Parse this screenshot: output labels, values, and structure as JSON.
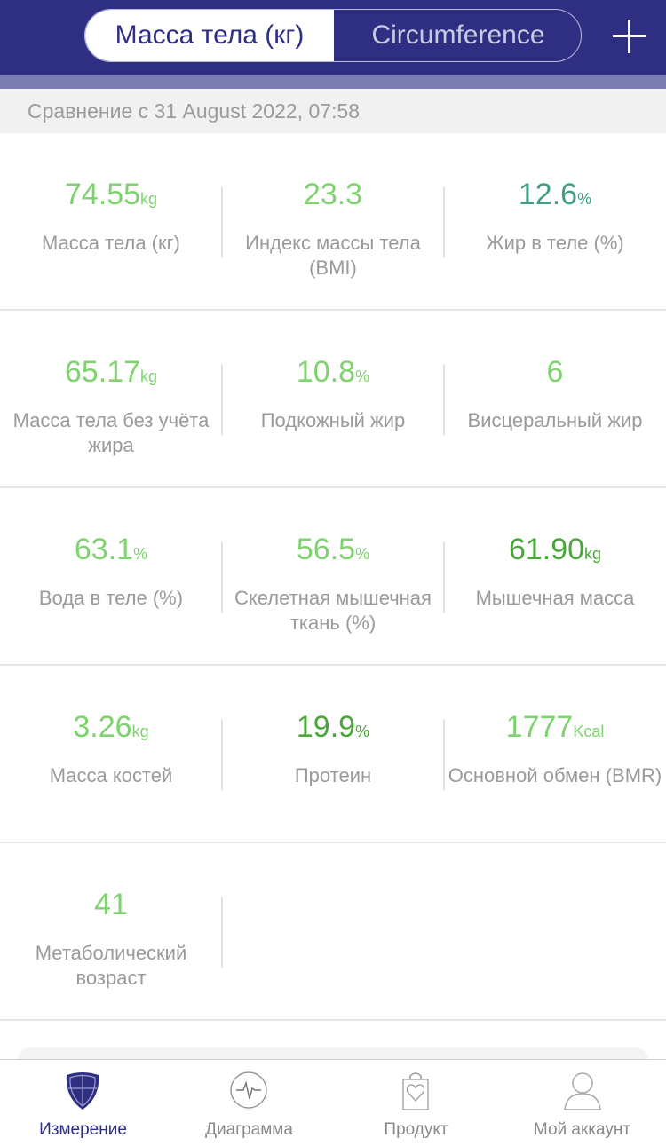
{
  "header": {
    "tabs": [
      {
        "label": "Масса тела (кг)",
        "active": true
      },
      {
        "label": "Circumference",
        "active": false
      }
    ],
    "add_icon": "plus-icon"
  },
  "compare": "Сравнение с 31 August 2022, 07:58",
  "colors": {
    "navy": "#2e2f82",
    "light_green": "#7ed36f",
    "teal": "#3f9e86",
    "dark_green": "#4aa83a",
    "label_gray": "#9a9a9a"
  },
  "rows": [
    [
      {
        "value": "74.55",
        "unit": "kg",
        "label": "Масса тела (кг)",
        "color": "#7ed36f"
      },
      {
        "value": "23.3",
        "unit": "",
        "label": "Индекс массы тела (BMI)",
        "color": "#7ed36f"
      },
      {
        "value": "12.6",
        "unit": "%",
        "label": "Жир в теле (%)",
        "color": "#3f9e86"
      }
    ],
    [
      {
        "value": "65.17",
        "unit": "kg",
        "label": "Масса тела без учёта жира",
        "color": "#7ed36f"
      },
      {
        "value": "10.8",
        "unit": "%",
        "label": "Подкожный жир",
        "color": "#7ed36f"
      },
      {
        "value": "6",
        "unit": "",
        "label": "Висцеральный жир",
        "color": "#7ed36f"
      }
    ],
    [
      {
        "value": "63.1",
        "unit": "%",
        "label": "Вода в теле (%)",
        "color": "#7ed36f"
      },
      {
        "value": "56.5",
        "unit": "%",
        "label": "Скелетная мышечная ткань (%)",
        "color": "#7ed36f"
      },
      {
        "value": "61.90",
        "unit": "kg",
        "label": "Мышечная масса",
        "color": "#4aa83a"
      }
    ],
    [
      {
        "value": "3.26",
        "unit": "kg",
        "label": "Масса костей",
        "color": "#7ed36f"
      },
      {
        "value": "19.9",
        "unit": "%",
        "label": "Протеин",
        "color": "#4aa83a"
      },
      {
        "value": "1777",
        "unit": "Kcal",
        "label": "Основной обмен (BMR)",
        "color": "#7ed36f"
      }
    ],
    [
      {
        "value": "41",
        "unit": "",
        "label": "Метаболический возраст",
        "color": "#7ed36f"
      }
    ]
  ],
  "tabbar": [
    {
      "label": "Измерение",
      "icon": "shield-icon",
      "active": true
    },
    {
      "label": "Диаграмма",
      "icon": "pulse-icon"
    },
    {
      "label": "Продукт",
      "icon": "shopping-bag-heart-icon"
    },
    {
      "label": "Мой аккаунт",
      "icon": "user-icon"
    }
  ]
}
